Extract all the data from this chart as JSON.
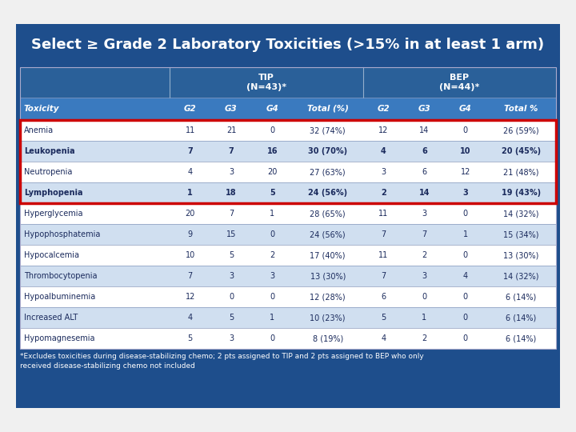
{
  "title": "Select ≥ Grade 2 Laboratory Toxicities (>15% in at least 1 arm)",
  "footnote": "*Excludes toxicities during disease-stabilizing chemo; 2 pts assigned to TIP and 2 pts assigned to BEP who only\nreceived disease-stabilizing chemo not included",
  "header2": [
    "Toxicity",
    "G2",
    "G3",
    "G4",
    "Total (%)",
    "G2",
    "G3",
    "G4",
    "Total %"
  ],
  "rows": [
    [
      "Anemia",
      "11",
      "21",
      "0",
      "32 (74%)",
      "12",
      "14",
      "0",
      "26 (59%)"
    ],
    [
      "Leukopenia",
      "7",
      "7",
      "16",
      "30 (70%)",
      "4",
      "6",
      "10",
      "20 (45%)"
    ],
    [
      "Neutropenia",
      "4",
      "3",
      "20",
      "27 (63%)",
      "3",
      "6",
      "12",
      "21 (48%)"
    ],
    [
      "Lymphopenia",
      "1",
      "18",
      "5",
      "24 (56%)",
      "2",
      "14",
      "3",
      "19 (43%)"
    ],
    [
      "Hyperglycemia",
      "20",
      "7",
      "1",
      "28 (65%)",
      "11",
      "3",
      "0",
      "14 (32%)"
    ],
    [
      "Hypophosphatemia",
      "9",
      "15",
      "0",
      "24 (56%)",
      "7",
      "7",
      "1",
      "15 (34%)"
    ],
    [
      "Hypocalcemia",
      "10",
      "5",
      "2",
      "17 (40%)",
      "11",
      "2",
      "0",
      "13 (30%)"
    ],
    [
      "Thrombocytopenia",
      "7",
      "3",
      "3",
      "13 (30%)",
      "7",
      "3",
      "4",
      "14 (32%)"
    ],
    [
      "Hypoalbuminemia",
      "12",
      "0",
      "0",
      "12 (28%)",
      "6",
      "0",
      "0",
      "6 (14%)"
    ],
    [
      "Increased ALT",
      "4",
      "5",
      "1",
      "10 (23%)",
      "5",
      "1",
      "0",
      "6 (14%)"
    ],
    [
      "Hypomagnesemia",
      "5",
      "3",
      "0",
      "8 (19%)",
      "4",
      "2",
      "0",
      "6 (14%)"
    ]
  ],
  "bold_rows": [
    1,
    3
  ],
  "shaded_rows": [
    1,
    3,
    5,
    7,
    9
  ],
  "outer_bg": "#f0f0f0",
  "dark_bg": "#1e4e8c",
  "medium_bg": "#2a6099",
  "header_bg": "#3a7abf",
  "row_bg_light": "#d0dff0",
  "row_bg_white": "#ffffff",
  "cell_text_color": "#1a2a5c",
  "title_color": "#ffffff",
  "red_border_color": "#cc0000",
  "footnote_color": "#ffffff",
  "line_color": "#8899bb"
}
